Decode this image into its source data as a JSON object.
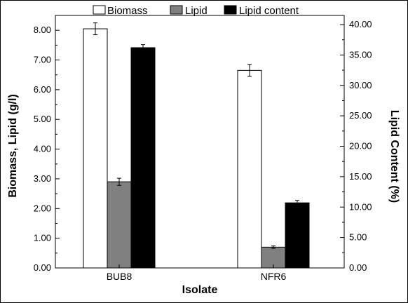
{
  "chart_data": {
    "type": "bar",
    "xlabel": "Isolate",
    "ylabel_left": "Biomass, Lipid (g/l)",
    "ylabel_right": "Lipid Content (%)",
    "categories": [
      "BUB8",
      "NFR6"
    ],
    "ylim_left": [
      0,
      8.5
    ],
    "ylim_right": [
      0,
      41.5
    ],
    "yticks_left": [
      "0.00",
      "1.00",
      "2.00",
      "3.00",
      "4.00",
      "5.00",
      "6.00",
      "7.00",
      "8.00"
    ],
    "yticks_right": [
      "0.00",
      "5.00",
      "10.00",
      "15.00",
      "20.00",
      "25.00",
      "30.00",
      "35.00",
      "40.00"
    ],
    "legend_position": "top",
    "series": [
      {
        "name": "Biomass",
        "axis": "left",
        "color": "#ffffff",
        "values": [
          8.05,
          6.65
        ],
        "errors": [
          0.2,
          0.2
        ]
      },
      {
        "name": "Lipid",
        "axis": "left",
        "color": "#808080",
        "values": [
          2.9,
          0.7
        ],
        "errors": [
          0.12,
          0.04
        ]
      },
      {
        "name": "Lipid content",
        "axis": "right",
        "color": "#000000",
        "values": [
          36.2,
          10.7
        ],
        "errors": [
          0.5,
          0.4
        ]
      }
    ]
  }
}
